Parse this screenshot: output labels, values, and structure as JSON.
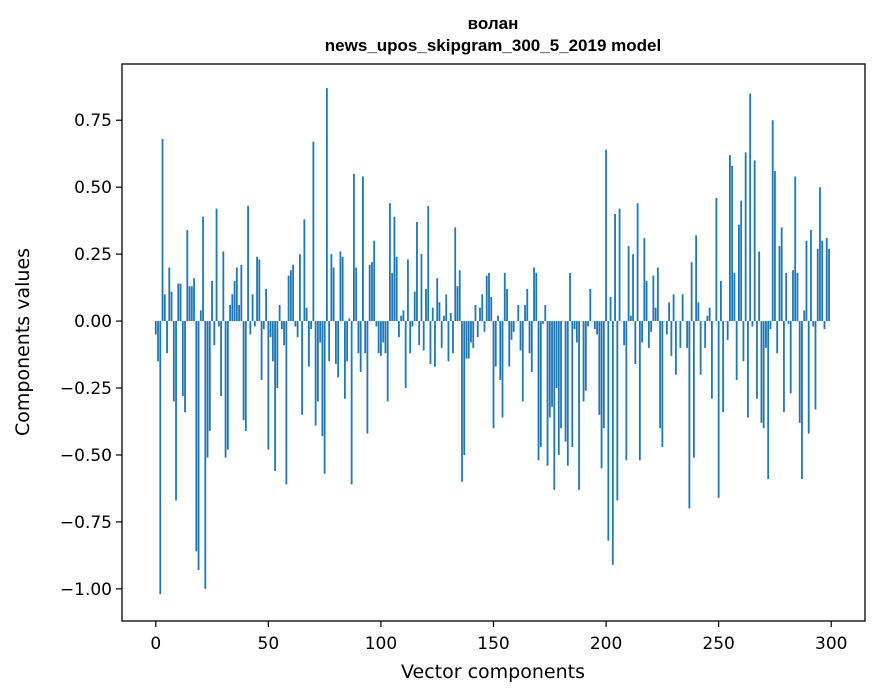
{
  "chart_data": {
    "type": "bar",
    "title": "волан",
    "subtitle": "news_upos_skipgram_300_5_2019 model",
    "xlabel": "Vector components",
    "ylabel": "Components values",
    "xlim": [
      -15,
      315
    ],
    "ylim": [
      -1.12,
      0.96
    ],
    "xticks": [
      0,
      50,
      100,
      150,
      200,
      250,
      300
    ],
    "xtick_labels": [
      "0",
      "50",
      "100",
      "150",
      "200",
      "250",
      "300"
    ],
    "yticks": [
      -1.0,
      -0.75,
      -0.5,
      -0.25,
      0.0,
      0.25,
      0.5,
      0.75
    ],
    "ytick_labels": [
      "−1.00",
      "−0.75",
      "−0.50",
      "−0.25",
      "0.00",
      "0.25",
      "0.50",
      "0.75"
    ],
    "bar_color": "#1f77b4",
    "values": [
      -0.05,
      -0.15,
      -1.02,
      0.68,
      0.1,
      -0.12,
      0.2,
      0.11,
      -0.3,
      -0.67,
      0.14,
      0.14,
      -0.28,
      -0.34,
      0.34,
      0.13,
      0.13,
      0.16,
      -0.86,
      -0.93,
      0.04,
      0.39,
      -1.0,
      -0.51,
      -0.41,
      0.15,
      -0.09,
      0.42,
      -0.02,
      -0.28,
      0.26,
      -0.51,
      -0.48,
      0.06,
      0.1,
      0.15,
      0.2,
      0.06,
      0.21,
      -0.37,
      -0.41,
      0.43,
      -0.05,
      0.1,
      -0.02,
      0.24,
      0.23,
      -0.22,
      -0.03,
      0.12,
      -0.48,
      -0.06,
      -0.15,
      -0.56,
      -0.25,
      0.06,
      -0.03,
      -0.09,
      -0.61,
      0.17,
      0.19,
      0.21,
      -0.02,
      -0.06,
      0.25,
      -0.35,
      0.38,
      0.05,
      -0.17,
      -0.03,
      0.67,
      -0.39,
      -0.3,
      -0.08,
      -0.43,
      -0.57,
      0.87,
      -0.15,
      0.25,
      0.2,
      -0.16,
      -0.21,
      0.26,
      0.24,
      -0.29,
      -0.15,
      0.01,
      -0.61,
      0.55,
      0.2,
      -0.12,
      -0.19,
      0.54,
      -0.12,
      -0.42,
      0.21,
      0.22,
      0.3,
      -0.02,
      -0.12,
      -0.13,
      -0.08,
      -0.12,
      -0.3,
      0.44,
      0.18,
      0.39,
      0.24,
      -0.06,
      0.02,
      0.04,
      -0.25,
      0.23,
      -0.12,
      -0.02,
      0.11,
      0.37,
      -0.09,
      0.25,
      -0.11,
      0.12,
      0.43,
      -0.16,
      0.05,
      -0.17,
      0.16,
      0.07,
      -0.1,
      0.02,
      0.1,
      -0.15,
      0.03,
      -0.12,
      0.35,
      0.13,
      0.19,
      -0.6,
      -0.5,
      -0.14,
      -0.14,
      -0.08,
      -0.1,
      0.06,
      -0.06,
      0.05,
      0.1,
      -0.04,
      0.17,
      0.18,
      0.09,
      -0.4,
      -0.17,
      0.02,
      -0.22,
      -0.36,
      0.18,
      0.12,
      -0.17,
      -0.07,
      -0.04,
      0.0,
      0.06,
      -0.11,
      -0.3,
      0.06,
      0.12,
      -0.12,
      -0.19,
      0.2,
      0.18,
      -0.52,
      -0.47,
      -0.01,
      0.06,
      -0.54,
      -0.36,
      -0.32,
      -0.63,
      -0.25,
      -0.5,
      -0.4,
      0.0,
      -0.45,
      -0.54,
      0.18,
      -0.47,
      -0.03,
      -0.08,
      -0.63,
      0.0,
      -0.3,
      -0.26,
      -0.02,
      0.12,
      0.0,
      -0.03,
      -0.05,
      -0.35,
      -0.55,
      -0.4,
      0.64,
      -0.82,
      0.09,
      -0.91,
      0.4,
      -0.67,
      0.42,
      0.0,
      -0.09,
      -0.52,
      0.28,
      0.02,
      0.25,
      -0.16,
      0.44,
      -0.52,
      -0.08,
      0.31,
      0.15,
      -0.1,
      -0.04,
      0.17,
      0.05,
      0.2,
      -0.4,
      -0.47,
      0.0,
      -0.05,
      0.07,
      -0.13,
      0.1,
      -0.2,
      0.0,
      -0.1,
      0.1,
      0.0,
      -0.1,
      -0.7,
      0.22,
      -0.51,
      0.32,
      0.07,
      -0.2,
      0.0,
      -0.1,
      0.02,
      0.05,
      -0.29,
      0.0,
      0.46,
      -0.66,
      0.15,
      -0.34,
      0.0,
      -0.07,
      0.62,
      0.58,
      0.18,
      -0.22,
      0.36,
      0.45,
      -0.15,
      0.63,
      -0.36,
      0.85,
      -0.02,
      0.6,
      -0.29,
      0.26,
      -0.38,
      -0.4,
      -0.1,
      -0.59,
      -0.03,
      0.75,
      0.56,
      -0.12,
      0.28,
      0.35,
      -0.34,
      0.18,
      -0.01,
      -0.27,
      0.19,
      0.54,
      0.18,
      -0.38,
      -0.59,
      0.04,
      0.3,
      -0.42,
      0.34,
      -0.02,
      -0.33,
      0.27,
      0.5,
      0.3,
      -0.03,
      0.31,
      0.27
    ]
  }
}
